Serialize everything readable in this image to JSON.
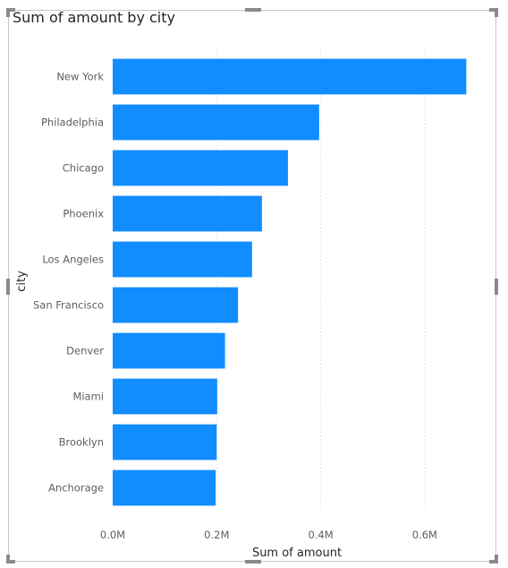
{
  "visual": {
    "title": "Sum of amount by city"
  },
  "chart_data": {
    "type": "bar",
    "orientation": "horizontal",
    "title": "Sum of amount by city",
    "xlabel": "Sum of amount",
    "ylabel": "city",
    "categories": [
      "New York",
      "Philadelphia",
      "Chicago",
      "Phoenix",
      "Los Angeles",
      "San Francisco",
      "Denver",
      "Miami",
      "Brooklyn",
      "Anchorage"
    ],
    "values": [
      680000,
      397000,
      337000,
      287000,
      268000,
      241000,
      216000,
      201000,
      200000,
      198000
    ],
    "xlim": [
      0,
      700000
    ],
    "ticks": [
      0,
      200000,
      400000,
      600000
    ],
    "tick_labels": [
      "0.0M",
      "0.2M",
      "0.4M",
      "0.6M"
    ],
    "grid": true,
    "bar_color": "#118dff",
    "grid_color": "#d9d9d9"
  }
}
